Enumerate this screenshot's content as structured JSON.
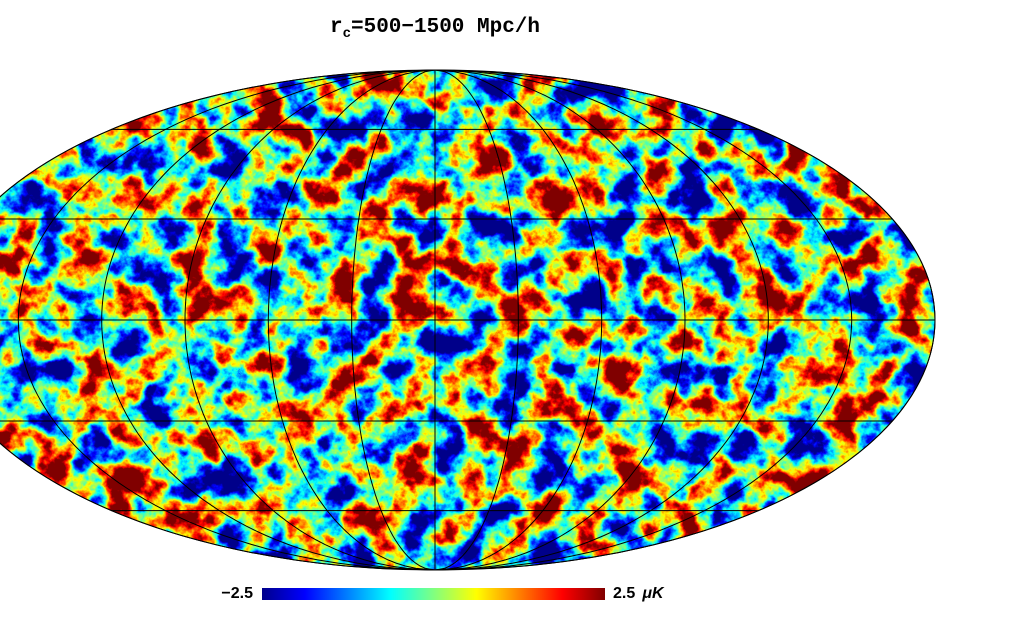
{
  "chart_data": {
    "type": "mollweide",
    "title_parts": [
      "r",
      "c",
      "=500−1500 Mpc/h"
    ],
    "grid": true,
    "colorbar": {
      "lim": [
        -2.5,
        2.5
      ],
      "ticks": [
        {
          "value": -2.5,
          "label": "−2.5"
        },
        2.5
      ],
      "unit": "μK",
      "colormap": [
        "#00008b",
        "#0000ff",
        "#0080ff",
        "#00ffff",
        "#80ff80",
        "#ffff00",
        "#ff8000",
        "#ff0000",
        "#800000"
      ]
    }
  }
}
